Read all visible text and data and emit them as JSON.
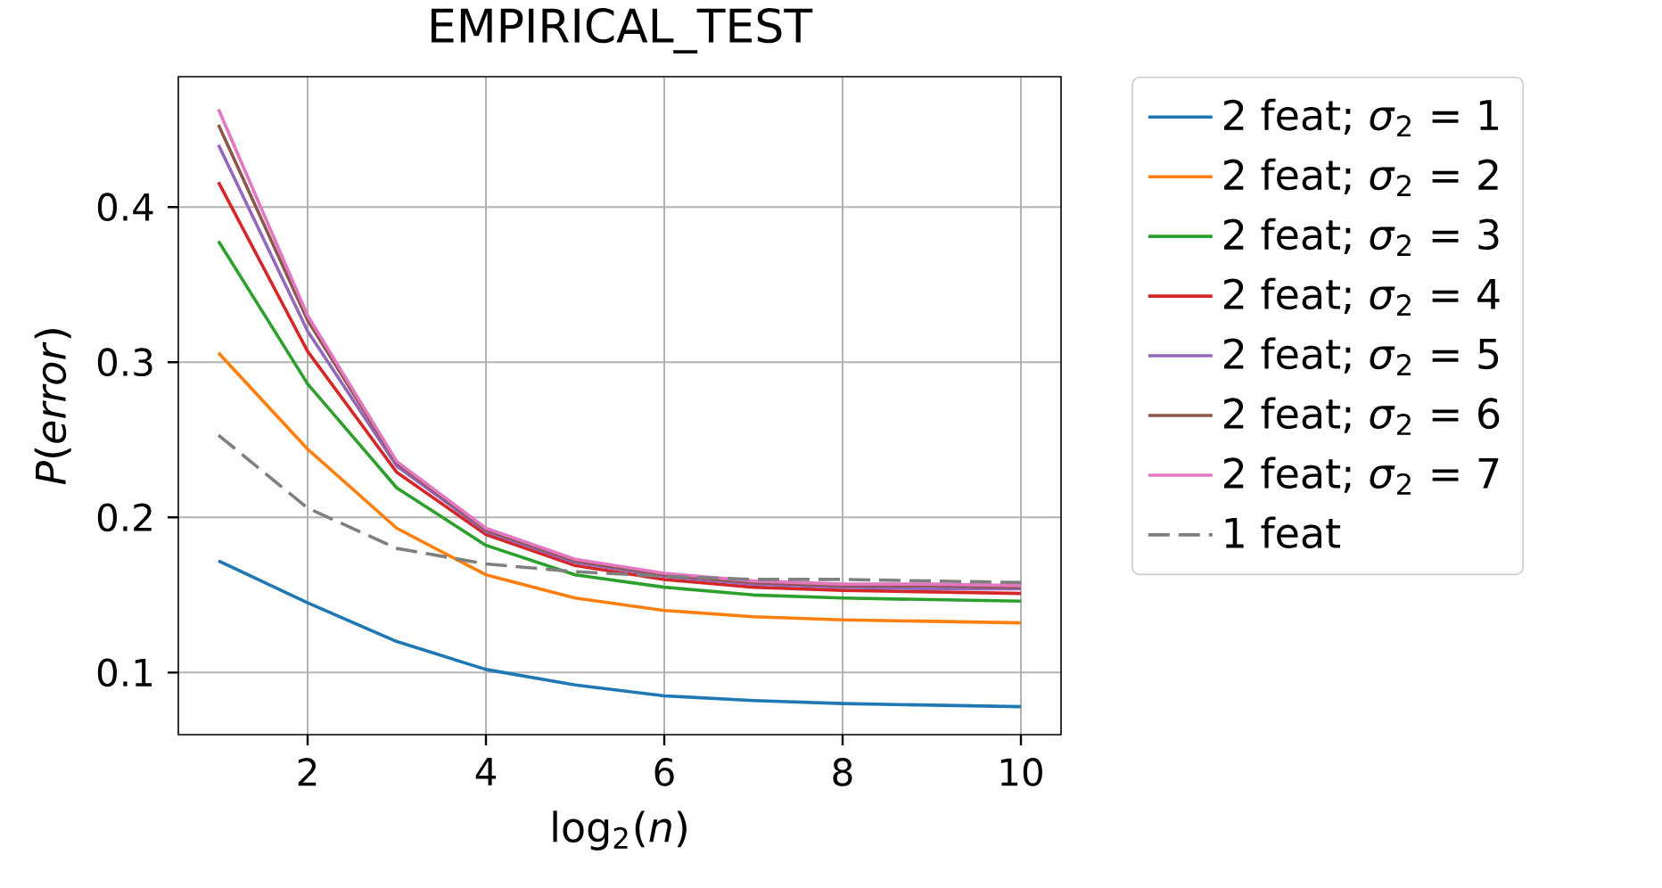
{
  "chart_data": {
    "type": "line",
    "title": "EMPIRICAL_TEST",
    "xlabel": "log$_{2}$(*n*)",
    "ylabel": "*P*(*error*)",
    "x": [
      1,
      2,
      3,
      4,
      5,
      6,
      7,
      8,
      9,
      10
    ],
    "series": [
      {
        "name": "2 feat; *σ*$_{2}$ = 1",
        "color": "#1f77b4",
        "values": [
          0.172,
          0.145,
          0.12,
          0.102,
          0.092,
          0.085,
          0.082,
          0.08,
          0.079,
          0.078
        ]
      },
      {
        "name": "2 feat; *σ*$_{2}$ = 2",
        "color": "#ff7f0e",
        "values": [
          0.306,
          0.244,
          0.193,
          0.163,
          0.148,
          0.14,
          0.136,
          0.134,
          0.133,
          0.132
        ]
      },
      {
        "name": "2 feat; *σ*$_{2}$ = 3",
        "color": "#2ca02c",
        "values": [
          0.378,
          0.286,
          0.219,
          0.182,
          0.163,
          0.155,
          0.15,
          0.148,
          0.147,
          0.146
        ]
      },
      {
        "name": "2 feat; *σ*$_{2}$ = 4",
        "color": "#d62728",
        "values": [
          0.416,
          0.307,
          0.229,
          0.189,
          0.169,
          0.16,
          0.155,
          0.153,
          0.152,
          0.151
        ]
      },
      {
        "name": "2 feat; *σ*$_{2}$ = 5",
        "color": "#9467bd",
        "values": [
          0.44,
          0.32,
          0.233,
          0.191,
          0.171,
          0.162,
          0.157,
          0.155,
          0.154,
          0.154
        ]
      },
      {
        "name": "2 feat; *σ*$_{2}$ = 6",
        "color": "#8c564b",
        "values": [
          0.453,
          0.327,
          0.235,
          0.192,
          0.172,
          0.163,
          0.158,
          0.156,
          0.156,
          0.155
        ]
      },
      {
        "name": "2 feat; *σ*$_{2}$ = 7",
        "color": "#e377c2",
        "values": [
          0.463,
          0.33,
          0.236,
          0.193,
          0.173,
          0.164,
          0.159,
          0.157,
          0.157,
          0.156
        ]
      },
      {
        "name": "1 feat",
        "color": "#7f7f7f",
        "line_style": "dashed",
        "values": [
          0.253,
          0.206,
          0.18,
          0.17,
          0.165,
          0.162,
          0.16,
          0.16,
          0.159,
          0.158
        ]
      }
    ],
    "xlim": [
      0.55,
      10.45
    ],
    "ylim": [
      0.06,
      0.484
    ],
    "xticks": [
      2,
      4,
      6,
      8,
      10
    ],
    "yticks": [
      0.1,
      0.2,
      0.3,
      0.4
    ],
    "grid": true,
    "legend": "right",
    "marker": "none",
    "line_style": "solid"
  }
}
